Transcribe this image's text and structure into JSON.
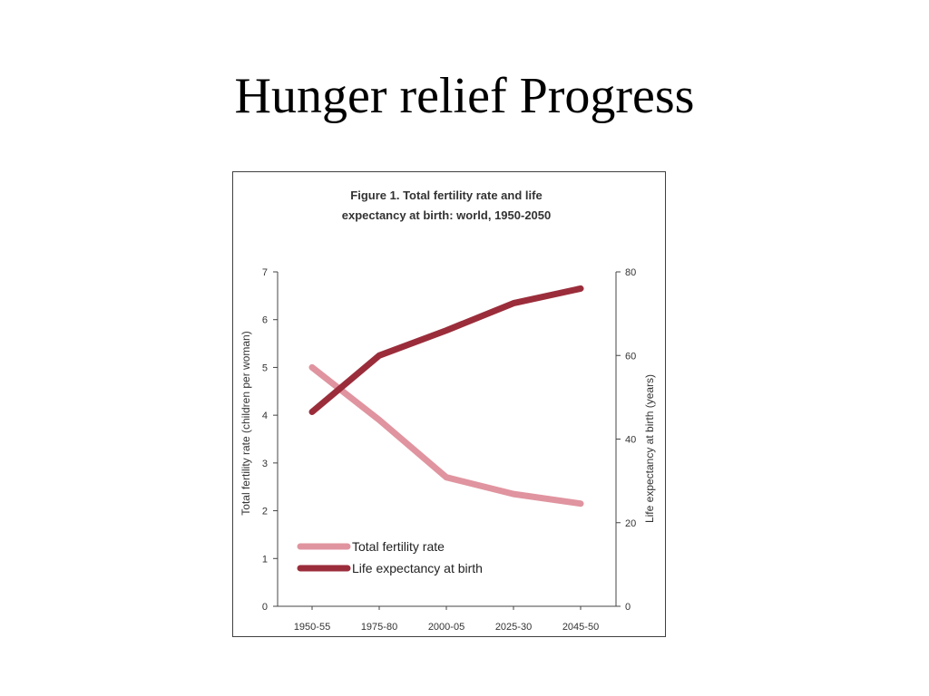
{
  "slide": {
    "title": "Hunger relief Progress"
  },
  "chart_data": {
    "type": "line",
    "title_lines": [
      "Figure 1.  Total fertility rate and life",
      "expectancy at birth: world, 1950-2050"
    ],
    "categories": [
      "1950-55",
      "1975-80",
      "2000-05",
      "2025-30",
      "2045-50"
    ],
    "ylabel_left": "Total fertility rate (children per woman)",
    "ylabel_right": "Life expectancy at birth (years)",
    "ylim_left": [
      0,
      7
    ],
    "ylim_right": [
      0,
      80
    ],
    "yticks_left": [
      "0",
      "1",
      "2",
      "3",
      "4",
      "5",
      "6",
      "7"
    ],
    "yticks_right": [
      "0",
      "20",
      "40",
      "60",
      "80"
    ],
    "grid": false,
    "legend_position": "bottom-left",
    "series": [
      {
        "name": "Total fertility rate",
        "axis": "left",
        "color": "#e0949f",
        "values": [
          5.0,
          3.9,
          2.7,
          2.35,
          2.15
        ]
      },
      {
        "name": "Life expectancy at birth",
        "axis": "right",
        "color": "#9b2d3b",
        "values": [
          46.5,
          60.0,
          66.0,
          72.5,
          76.0
        ]
      }
    ]
  }
}
